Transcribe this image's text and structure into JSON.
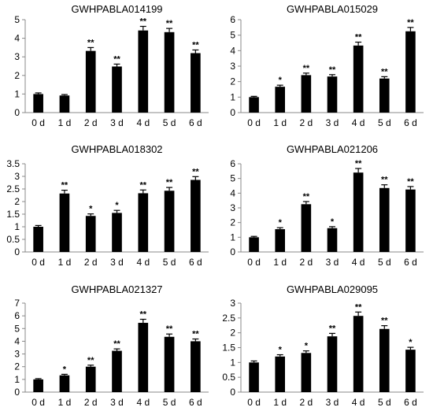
{
  "chart_data": [
    {
      "type": "bar",
      "title": "GWHPABLA014199",
      "categories": [
        "0 d",
        "1 d",
        "2 d",
        "3 d",
        "4 d",
        "5 d",
        "6 d"
      ],
      "values": [
        1.0,
        0.92,
        3.32,
        2.48,
        4.42,
        4.33,
        3.2
      ],
      "errors": [
        0.06,
        0.05,
        0.18,
        0.13,
        0.22,
        0.2,
        0.17
      ],
      "significance": [
        "",
        "",
        "**",
        "**",
        "**",
        "**",
        "**"
      ],
      "ylim": [
        0,
        5
      ],
      "yticks": [
        "0",
        "1",
        "2",
        "3",
        "4",
        "5"
      ],
      "xlabel": "",
      "ylabel": ""
    },
    {
      "type": "bar",
      "title": "GWHPABLA015029",
      "categories": [
        "0 d",
        "1 d",
        "2 d",
        "3 d",
        "4 d",
        "5 d",
        "6 d"
      ],
      "values": [
        1.0,
        1.67,
        2.42,
        2.33,
        4.33,
        2.2,
        5.25
      ],
      "errors": [
        0.05,
        0.1,
        0.13,
        0.12,
        0.22,
        0.12,
        0.25
      ],
      "significance": [
        "",
        "*",
        "**",
        "**",
        "**",
        "**",
        "**"
      ],
      "ylim": [
        0,
        6
      ],
      "yticks": [
        "0",
        "1",
        "2",
        "3",
        "4",
        "5",
        "6"
      ],
      "xlabel": "",
      "ylabel": ""
    },
    {
      "type": "bar",
      "title": "GWHPABLA018302",
      "categories": [
        "0 d",
        "1 d",
        "2 d",
        "3 d",
        "4 d",
        "5 d",
        "6 d"
      ],
      "values": [
        1.0,
        2.32,
        1.43,
        1.55,
        2.33,
        2.43,
        2.86
      ],
      "errors": [
        0.05,
        0.13,
        0.08,
        0.1,
        0.13,
        0.13,
        0.13
      ],
      "significance": [
        "",
        "**",
        "*",
        "*",
        "**",
        "**",
        "**"
      ],
      "ylim": [
        0,
        3.5
      ],
      "yticks": [
        "0",
        "0.5",
        "1",
        "1.5",
        "2",
        "2.5",
        "3",
        "3.5"
      ],
      "xlabel": "",
      "ylabel": ""
    },
    {
      "type": "bar",
      "title": "GWHPABLA021206",
      "categories": [
        "0 d",
        "1 d",
        "2 d",
        "3 d",
        "4 d",
        "5 d",
        "6 d"
      ],
      "values": [
        1.0,
        1.55,
        3.25,
        1.62,
        5.4,
        4.35,
        4.25
      ],
      "errors": [
        0.06,
        0.1,
        0.18,
        0.1,
        0.28,
        0.22,
        0.2
      ],
      "significance": [
        "",
        "*",
        "**",
        "*",
        "**",
        "**",
        "**"
      ],
      "ylim": [
        0,
        6
      ],
      "yticks": [
        "0",
        "1",
        "2",
        "3",
        "4",
        "5",
        "6"
      ],
      "xlabel": "",
      "ylabel": ""
    },
    {
      "type": "bar",
      "title": "GWHPABLA021327",
      "categories": [
        "0 d",
        "1 d",
        "2 d",
        "3 d",
        "4 d",
        "5 d",
        "6 d"
      ],
      "values": [
        1.0,
        1.32,
        2.0,
        3.25,
        5.45,
        4.35,
        4.0
      ],
      "errors": [
        0.06,
        0.08,
        0.12,
        0.15,
        0.28,
        0.22,
        0.18
      ],
      "significance": [
        "",
        "*",
        "**",
        "**",
        "**",
        "**",
        "**"
      ],
      "ylim": [
        0,
        7
      ],
      "yticks": [
        "0",
        "1",
        "2",
        "3",
        "4",
        "5",
        "6",
        "7"
      ],
      "xlabel": "",
      "ylabel": ""
    },
    {
      "type": "bar",
      "title": "GWHPABLA029095",
      "categories": [
        "0 d",
        "1 d",
        "2 d",
        "3 d",
        "4 d",
        "5 d",
        "6 d"
      ],
      "values": [
        1.0,
        1.2,
        1.32,
        1.88,
        2.57,
        2.13,
        1.43
      ],
      "errors": [
        0.05,
        0.06,
        0.07,
        0.1,
        0.13,
        0.11,
        0.08
      ],
      "significance": [
        "",
        "*",
        "*",
        "**",
        "**",
        "**",
        "*"
      ],
      "ylim": [
        0,
        3
      ],
      "yticks": [
        "0",
        "0.5",
        "1",
        "1.5",
        "2",
        "2.5",
        "3"
      ],
      "xlabel": "",
      "ylabel": ""
    }
  ]
}
